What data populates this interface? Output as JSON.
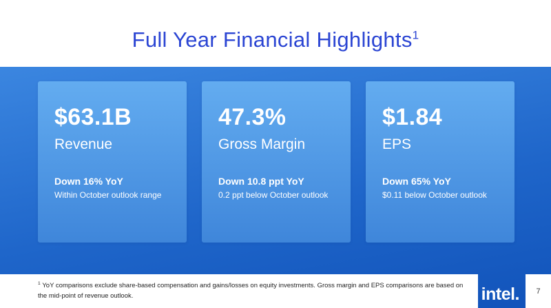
{
  "slide": {
    "title": "Full Year Financial Highlights",
    "title_sup": "1",
    "cards": [
      {
        "value": "$63.1B",
        "label": "Revenue",
        "change": "Down 16% YoY",
        "note": "Within October outlook range"
      },
      {
        "value": "47.3%",
        "label": "Gross Margin",
        "change": "Down 10.8 ppt YoY",
        "note": "0.2 ppt below October outlook"
      },
      {
        "value": "$1.84",
        "label": "EPS",
        "change": "Down 65% YoY",
        "note": "$0.11 below October outlook"
      }
    ],
    "footnote_sup": "1",
    "footnote": "YoY comparisons exclude share-based compensation and gains/losses on equity investments. Gross margin and EPS comparisons are based on the mid-point of revenue outlook.",
    "logo": "intel.",
    "page_number": "7"
  },
  "colors": {
    "title": "#2b45d3",
    "panel-top": "#3b86e0",
    "panel-bottom": "#1153ba",
    "card-top": "#63acf0",
    "card-bottom": "#3f86da",
    "card-text": "#ffffff",
    "footnote-text": "#1f1f1f"
  }
}
